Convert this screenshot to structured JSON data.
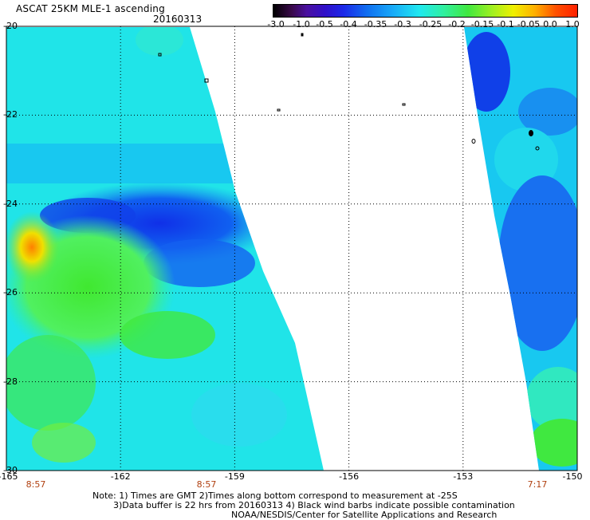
{
  "header": {
    "title": "ASCAT 25KM MLE-1 ascending",
    "date": "20160313"
  },
  "colorbar": {
    "labels": [
      "-3.0",
      "-1.0",
      "-0.5",
      "-0.4",
      "-0.35",
      "-0.3",
      "-0.25",
      "-0.2",
      "-0.15",
      "-0.1",
      "-0.05",
      "0.0",
      "1.0"
    ]
  },
  "axes": {
    "y_ticks": [
      "-20",
      "-22",
      "-24",
      "-26",
      "-28",
      "-30"
    ],
    "x_ticks": [
      "-165",
      "-162",
      "-159",
      "-156",
      "-153",
      "-150"
    ],
    "time_labels": [
      "8:57",
      "8:57",
      "7:17"
    ]
  },
  "notes": {
    "line1": "Note: 1) Times are GMT 2)Times along bottom correspond to measurement at -25S",
    "line2": "3)Data buffer is 22 hrs from 20160313 4) Black wind barbs indicate possible contamination",
    "line3": "NOAA/NESDIS/Center for Satellite Applications and Research"
  },
  "colors": {
    "swath_base": "#20e8e8",
    "low_band": "#1060f0",
    "high_zone": "#40e840",
    "peak": "#ff8000"
  }
}
